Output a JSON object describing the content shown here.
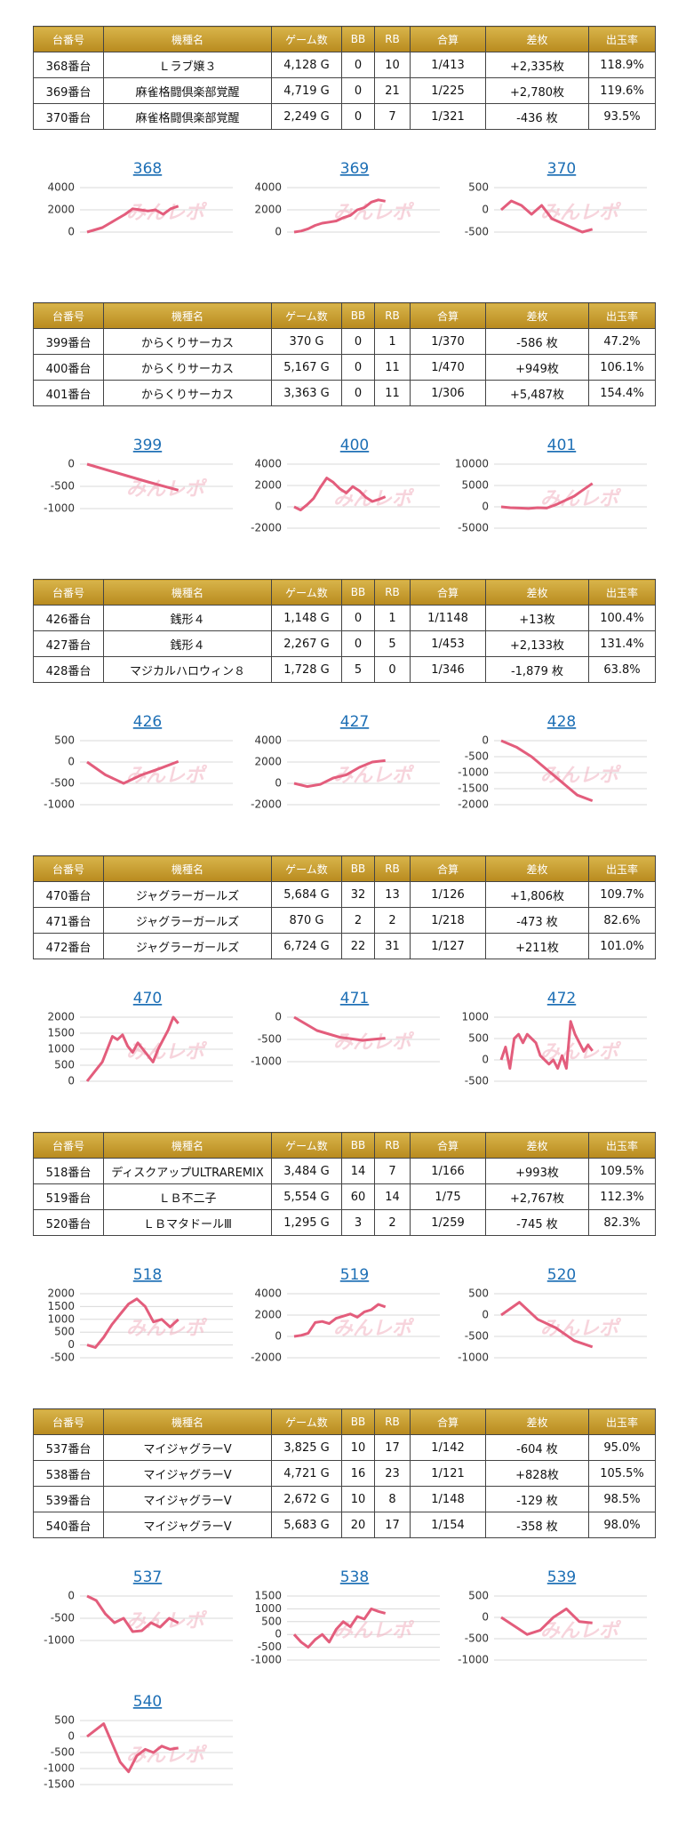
{
  "watermark": "みんレポ",
  "sections": [
    {
      "table": {
        "header": [
          "台番号",
          "機種名",
          "ゲーム数",
          "BB",
          "RB",
          "合算",
          "差枚",
          "出玉率"
        ],
        "rows": [
          [
            "368番台",
            "Ｌラブ嬢３",
            "4,128 G",
            "0",
            "10",
            "1/413",
            "+2,335枚",
            "118.9%"
          ],
          [
            "369番台",
            "麻雀格闘倶楽部覚醒",
            "4,719 G",
            "0",
            "21",
            "1/225",
            "+2,780枚",
            "119.6%"
          ],
          [
            "370番台",
            "麻雀格闘倶楽部覚醒",
            "2,249 G",
            "0",
            "7",
            "1/321",
            "-436 枚",
            "93.5%"
          ]
        ]
      },
      "charts": [
        {
          "type": "line",
          "title": "368",
          "ylim": [
            0,
            4000
          ],
          "yticks": [
            0,
            2000,
            4000
          ],
          "color": "#e35d7c",
          "values": [
            0,
            200,
            400,
            800,
            1200,
            1600,
            2100,
            2000,
            1900,
            2000,
            1600,
            2100,
            2335
          ]
        },
        {
          "type": "line",
          "title": "369",
          "ylim": [
            0,
            4000
          ],
          "yticks": [
            0,
            2000,
            4000
          ],
          "color": "#e35d7c",
          "values": [
            0,
            100,
            300,
            600,
            800,
            900,
            1000,
            1300,
            1500,
            2000,
            2200,
            2700,
            2900,
            2780
          ]
        },
        {
          "type": "line",
          "title": "370",
          "ylim": [
            -500,
            500
          ],
          "yticks": [
            -500,
            0,
            500
          ],
          "color": "#e35d7c",
          "values": [
            0,
            200,
            100,
            -100,
            100,
            -200,
            -300,
            -400,
            -500,
            -436
          ]
        }
      ]
    },
    {
      "table": {
        "header": [
          "台番号",
          "機種名",
          "ゲーム数",
          "BB",
          "RB",
          "合算",
          "差枚",
          "出玉率"
        ],
        "rows": [
          [
            "399番台",
            "からくりサーカス",
            "370 G",
            "0",
            "1",
            "1/370",
            "-586 枚",
            "47.2%"
          ],
          [
            "400番台",
            "からくりサーカス",
            "5,167 G",
            "0",
            "11",
            "1/470",
            "+949枚",
            "106.1%"
          ],
          [
            "401番台",
            "からくりサーカス",
            "3,363 G",
            "0",
            "11",
            "1/306",
            "+5,487枚",
            "154.4%"
          ]
        ]
      },
      "charts": [
        {
          "type": "line",
          "title": "399",
          "ylim": [
            -1000,
            0
          ],
          "yticks": [
            -1000,
            -500,
            0
          ],
          "color": "#e35d7c",
          "values": [
            0,
            -200,
            -400,
            -586
          ]
        },
        {
          "type": "line",
          "title": "400",
          "ylim": [
            -2000,
            4000
          ],
          "yticks": [
            -2000,
            0,
            2000,
            4000
          ],
          "color": "#e35d7c",
          "values": [
            0,
            -300,
            200,
            800,
            1800,
            2700,
            2300,
            1700,
            1300,
            1900,
            1500,
            900,
            500,
            700,
            949
          ]
        },
        {
          "type": "line",
          "title": "401",
          "ylim": [
            -5000,
            10000
          ],
          "yticks": [
            -5000,
            0,
            5000,
            10000
          ],
          "color": "#e35d7c",
          "values": [
            0,
            -200,
            -300,
            -400,
            -200,
            -300,
            500,
            1500,
            2500,
            4000,
            5487
          ]
        }
      ]
    },
    {
      "table": {
        "header": [
          "台番号",
          "機種名",
          "ゲーム数",
          "BB",
          "RB",
          "合算",
          "差枚",
          "出玉率"
        ],
        "rows": [
          [
            "426番台",
            "銭形４",
            "1,148 G",
            "0",
            "1",
            "1/1148",
            "+13枚",
            "100.4%"
          ],
          [
            "427番台",
            "銭形４",
            "2,267 G",
            "0",
            "5",
            "1/453",
            "+2,133枚",
            "131.4%"
          ],
          [
            "428番台",
            "マジカルハロウィン８",
            "1,728 G",
            "5",
            "0",
            "1/346",
            "-1,879 枚",
            "63.8%"
          ]
        ]
      },
      "charts": [
        {
          "type": "line",
          "title": "426",
          "ylim": [
            -1000,
            500
          ],
          "yticks": [
            -1000,
            -500,
            0,
            500
          ],
          "color": "#e35d7c",
          "values": [
            0,
            -300,
            -500,
            -300,
            -150,
            13
          ]
        },
        {
          "type": "line",
          "title": "427",
          "ylim": [
            -2000,
            4000
          ],
          "yticks": [
            -2000,
            0,
            2000,
            4000
          ],
          "color": "#e35d7c",
          "values": [
            0,
            -300,
            -100,
            500,
            800,
            1500,
            2000,
            2133
          ]
        },
        {
          "type": "line",
          "title": "428",
          "ylim": [
            -2000,
            0
          ],
          "yticks": [
            -2000,
            -1500,
            -1000,
            -500,
            0
          ],
          "color": "#e35d7c",
          "values": [
            0,
            -200,
            -500,
            -900,
            -1300,
            -1700,
            -1879
          ]
        }
      ]
    },
    {
      "table": {
        "header": [
          "台番号",
          "機種名",
          "ゲーム数",
          "BB",
          "RB",
          "合算",
          "差枚",
          "出玉率"
        ],
        "rows": [
          [
            "470番台",
            "ジャグラーガールズ",
            "5,684 G",
            "32",
            "13",
            "1/126",
            "+1,806枚",
            "109.7%"
          ],
          [
            "471番台",
            "ジャグラーガールズ",
            "870 G",
            "2",
            "2",
            "1/218",
            "-473 枚",
            "82.6%"
          ],
          [
            "472番台",
            "ジャグラーガールズ",
            "6,724 G",
            "22",
            "31",
            "1/127",
            "+211枚",
            "101.0%"
          ]
        ]
      },
      "charts": [
        {
          "type": "line",
          "title": "470",
          "ylim": [
            0,
            2000
          ],
          "yticks": [
            0,
            500,
            1000,
            1500,
            2000
          ],
          "color": "#e35d7c",
          "values": [
            0,
            200,
            400,
            600,
            1000,
            1400,
            1300,
            1450,
            1100,
            900,
            1200,
            1000,
            800,
            600,
            1000,
            1300,
            1600,
            2000,
            1806
          ]
        },
        {
          "type": "line",
          "title": "471",
          "ylim": [
            -1000,
            0
          ],
          "yticks": [
            -1000,
            -500,
            0
          ],
          "color": "#e35d7c",
          "values": [
            0,
            -300,
            -450,
            -520,
            -473
          ]
        },
        {
          "type": "line",
          "title": "472",
          "ylim": [
            -500,
            1000
          ],
          "yticks": [
            -500,
            0,
            500,
            1000
          ],
          "color": "#e35d7c",
          "values": [
            0,
            300,
            -200,
            500,
            600,
            400,
            600,
            500,
            400,
            100,
            0,
            -100,
            0,
            -200,
            100,
            -200,
            900,
            600,
            400,
            200,
            350,
            211
          ]
        }
      ]
    },
    {
      "table": {
        "header": [
          "台番号",
          "機種名",
          "ゲーム数",
          "BB",
          "RB",
          "合算",
          "差枚",
          "出玉率"
        ],
        "rows": [
          [
            "518番台",
            "ディスクアップULTRAREMIX",
            "3,484 G",
            "14",
            "7",
            "1/166",
            "+993枚",
            "109.5%"
          ],
          [
            "519番台",
            "ＬＢ不二子",
            "5,554 G",
            "60",
            "14",
            "1/75",
            "+2,767枚",
            "112.3%"
          ],
          [
            "520番台",
            "ＬＢマタドールⅢ",
            "1,295 G",
            "3",
            "2",
            "1/259",
            "-745 枚",
            "82.3%"
          ]
        ]
      },
      "charts": [
        {
          "type": "line",
          "title": "518",
          "ylim": [
            -500,
            2000
          ],
          "yticks": [
            -500,
            0,
            500,
            1000,
            1500,
            2000
          ],
          "color": "#e35d7c",
          "values": [
            0,
            -100,
            300,
            800,
            1200,
            1600,
            1800,
            1500,
            900,
            1000,
            700,
            993
          ]
        },
        {
          "type": "line",
          "title": "519",
          "ylim": [
            -2000,
            4000
          ],
          "yticks": [
            -2000,
            0,
            2000,
            4000
          ],
          "color": "#e35d7c",
          "values": [
            0,
            100,
            300,
            1300,
            1400,
            1200,
            1700,
            1900,
            2100,
            1800,
            2300,
            2500,
            3000,
            2767
          ]
        },
        {
          "type": "line",
          "title": "520",
          "ylim": [
            -1000,
            500
          ],
          "yticks": [
            -1000,
            -500,
            0,
            500
          ],
          "color": "#e35d7c",
          "values": [
            0,
            300,
            -100,
            -300,
            -600,
            -745
          ]
        }
      ]
    },
    {
      "table": {
        "header": [
          "台番号",
          "機種名",
          "ゲーム数",
          "BB",
          "RB",
          "合算",
          "差枚",
          "出玉率"
        ],
        "rows": [
          [
            "537番台",
            "マイジャグラーV",
            "3,825 G",
            "10",
            "17",
            "1/142",
            "-604 枚",
            "95.0%"
          ],
          [
            "538番台",
            "マイジャグラーV",
            "4,721 G",
            "16",
            "23",
            "1/121",
            "+828枚",
            "105.5%"
          ],
          [
            "539番台",
            "マイジャグラーV",
            "2,672 G",
            "10",
            "8",
            "1/148",
            "-129 枚",
            "98.5%"
          ],
          [
            "540番台",
            "マイジャグラーV",
            "5,683 G",
            "20",
            "17",
            "1/154",
            "-358 枚",
            "98.0%"
          ]
        ]
      },
      "charts": [
        {
          "type": "line",
          "title": "537",
          "ylim": [
            -1000,
            0
          ],
          "yticks": [
            -1000,
            -500,
            0
          ],
          "color": "#e35d7c",
          "values": [
            0,
            -100,
            -400,
            -600,
            -500,
            -800,
            -780,
            -600,
            -700,
            -500,
            -604
          ]
        },
        {
          "type": "line",
          "title": "538",
          "ylim": [
            -1000,
            1500
          ],
          "yticks": [
            -1000,
            -500,
            0,
            500,
            1000,
            1500
          ],
          "color": "#e35d7c",
          "values": [
            0,
            -300,
            -500,
            -200,
            0,
            -300,
            200,
            500,
            300,
            700,
            600,
            1000,
            900,
            828
          ]
        },
        {
          "type": "line",
          "title": "539",
          "ylim": [
            -1000,
            500
          ],
          "yticks": [
            -1000,
            -500,
            0,
            500
          ],
          "color": "#e35d7c",
          "values": [
            0,
            -200,
            -400,
            -300,
            0,
            200,
            -100,
            -129
          ]
        },
        {
          "type": "line",
          "title": "540",
          "ylim": [
            -1500,
            500
          ],
          "yticks": [
            -1500,
            -1000,
            -500,
            0,
            500
          ],
          "color": "#e35d7c",
          "values": [
            0,
            200,
            400,
            -200,
            -800,
            -1100,
            -600,
            -400,
            -500,
            -300,
            -400,
            -358
          ]
        }
      ]
    }
  ]
}
